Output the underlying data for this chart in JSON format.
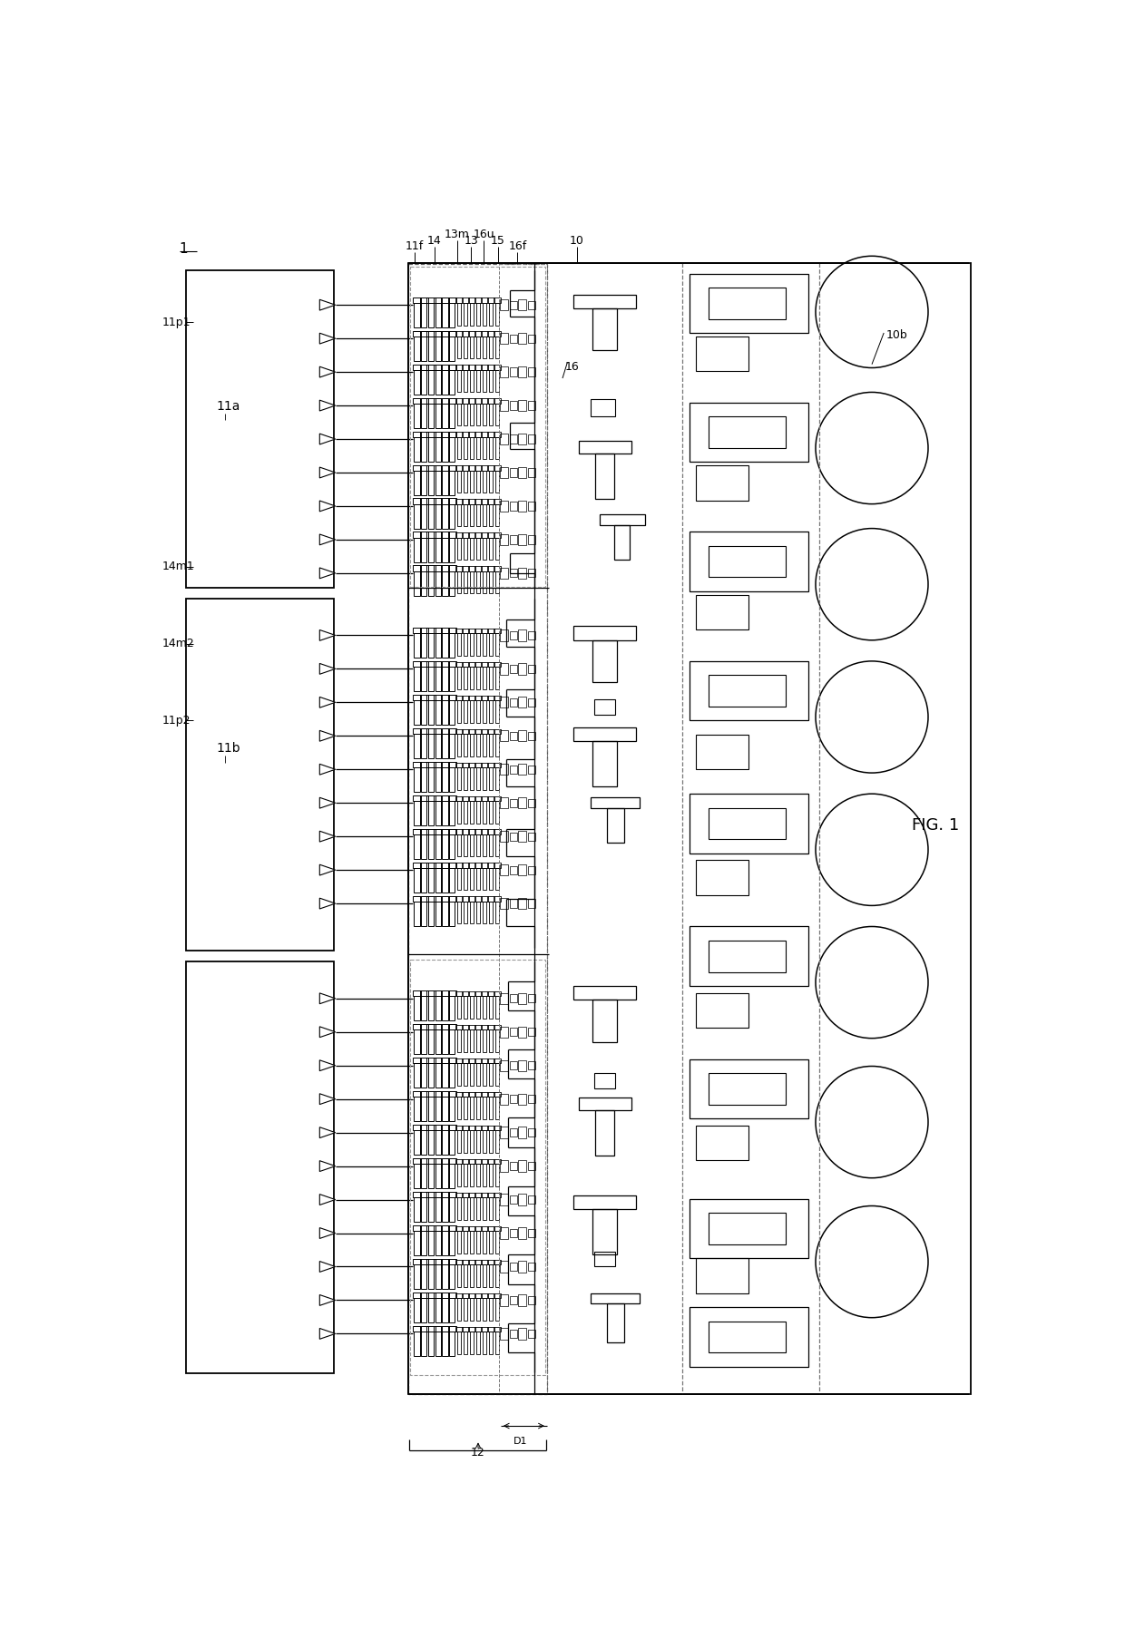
{
  "bg": "#ffffff",
  "lc": "#000000",
  "lw": 1.2,
  "fig_label": "FIG. 1",
  "top_labels": [
    "11f",
    "14",
    "13m",
    "13",
    "16u",
    "15",
    "16f",
    "10"
  ],
  "side_labels_left": [
    "11p1",
    "14m1",
    "14m2",
    "11p2"
  ],
  "component_labels": [
    "11a",
    "11b",
    "16",
    "10b",
    "12",
    "D1",
    "1"
  ]
}
